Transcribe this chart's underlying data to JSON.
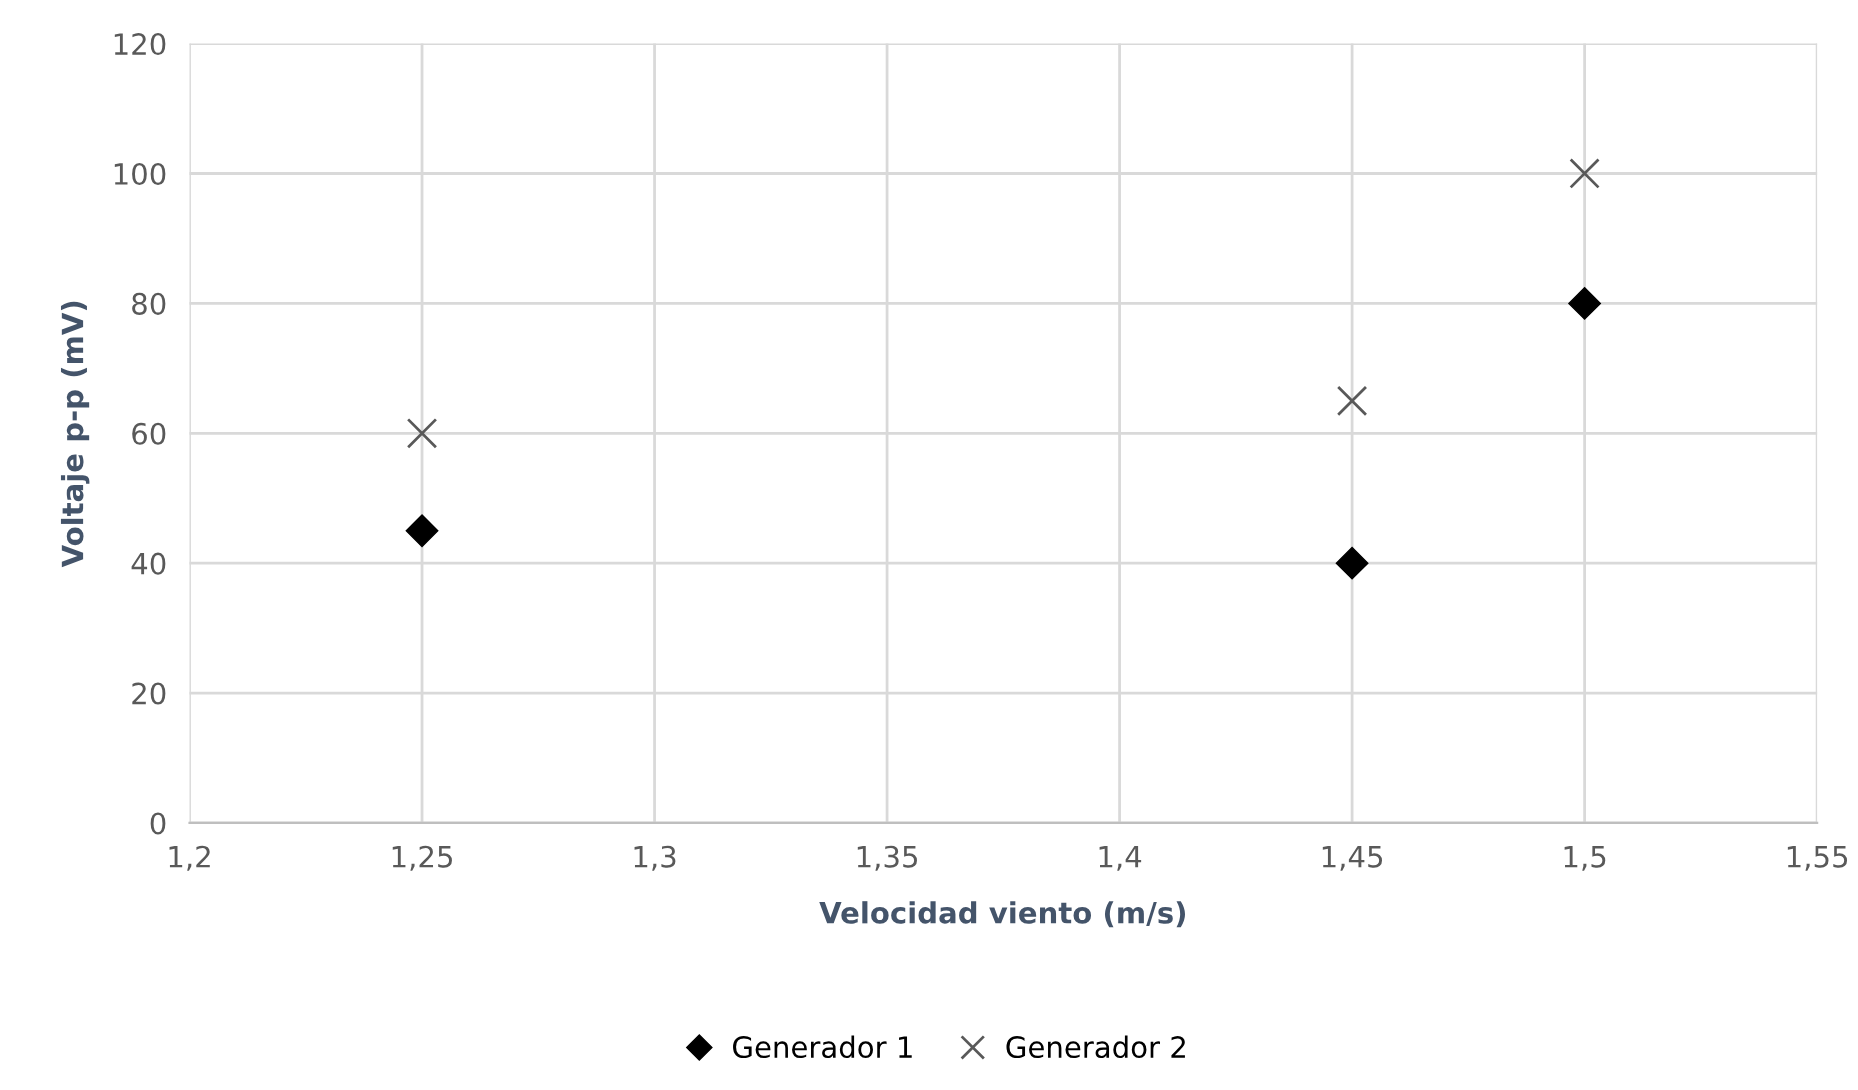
{
  "chart_data": {
    "type": "scatter",
    "xlabel": "Velocidad viento (m/s)",
    "ylabel": "Voltaje p-p (mV)",
    "xlim": [
      1.2,
      1.55
    ],
    "xticks": [
      {
        "value": 1.2,
        "label": "1,2"
      },
      {
        "value": 1.25,
        "label": "1,25"
      },
      {
        "value": 1.3,
        "label": "1,3"
      },
      {
        "value": 1.35,
        "label": "1,35"
      },
      {
        "value": 1.4,
        "label": "1,4"
      },
      {
        "value": 1.45,
        "label": "1,45"
      },
      {
        "value": 1.5,
        "label": "1,5"
      },
      {
        "value": 1.55,
        "label": "1,55"
      }
    ],
    "ylim": [
      0,
      120
    ],
    "yticks": [
      0,
      20,
      40,
      60,
      80,
      100,
      120
    ],
    "grid": true,
    "legend": "bottom",
    "series": [
      {
        "name": "Generador 1",
        "color": "#000000",
        "marker": "diamond",
        "x": [
          1.25,
          1.45,
          1.5
        ],
        "values": [
          45,
          40,
          80
        ]
      },
      {
        "name": "Generador 2",
        "color": "#595959",
        "marker": "cross",
        "x": [
          1.25,
          1.45,
          1.5
        ],
        "values": [
          60,
          65,
          100
        ]
      }
    ]
  }
}
